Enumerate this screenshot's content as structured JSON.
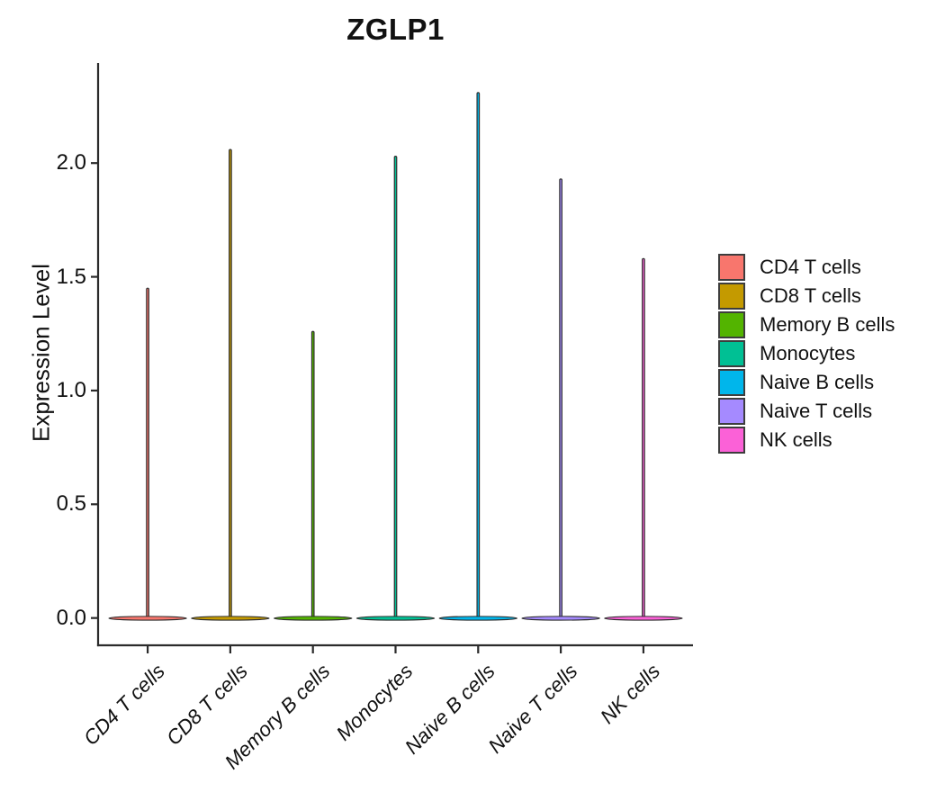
{
  "chart_data": {
    "type": "violin",
    "title": "ZGLP1",
    "xlabel": "",
    "ylabel": "Expression Level",
    "categories": [
      "CD4 T cells",
      "CD8 T cells",
      "Memory B cells",
      "Monocytes",
      "Naive B cells",
      "Naive T cells",
      "NK cells"
    ],
    "series": [
      {
        "name": "CD4 T cells",
        "color": "#F8766D",
        "bulk_value": 0,
        "spike_max": 1.45
      },
      {
        "name": "CD8 T cells",
        "color": "#C49A00",
        "bulk_value": 0,
        "spike_max": 2.06
      },
      {
        "name": "Memory B cells",
        "color": "#53B400",
        "bulk_value": 0,
        "spike_max": 1.26
      },
      {
        "name": "Monocytes",
        "color": "#00C094",
        "bulk_value": 0,
        "spike_max": 2.03
      },
      {
        "name": "Naive B cells",
        "color": "#00B6EB",
        "bulk_value": 0,
        "spike_max": 2.31
      },
      {
        "name": "Naive T cells",
        "color": "#A58AFF",
        "bulk_value": 0,
        "spike_max": 1.93
      },
      {
        "name": "NK cells",
        "color": "#FB61D7",
        "bulk_value": 0,
        "spike_max": 1.58
      }
    ],
    "yticks": [
      {
        "label": "0.0",
        "value": 0.0
      },
      {
        "label": "0.5",
        "value": 0.5
      },
      {
        "label": "1.0",
        "value": 1.0
      },
      {
        "label": "1.5",
        "value": 1.5
      },
      {
        "label": "2.0",
        "value": 2.0
      }
    ],
    "ylim": [
      -0.12,
      2.44
    ],
    "grid": false,
    "legend_position": "right",
    "outline_color": "#2f2f2f",
    "axis_color": "#2b2b2b",
    "text_color": "#111111"
  }
}
